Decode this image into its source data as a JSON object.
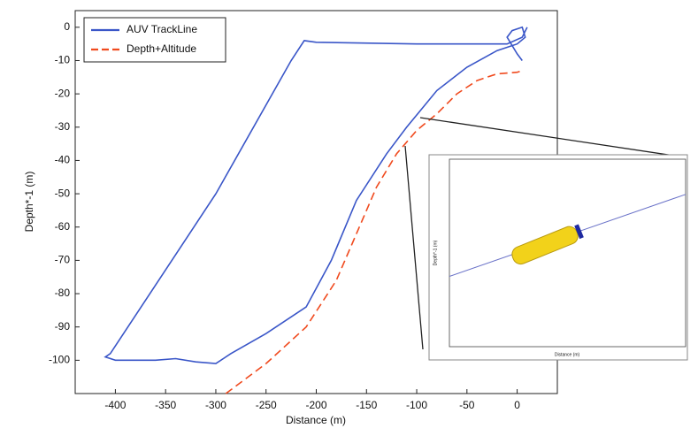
{
  "chart_data": [
    {
      "type": "line",
      "x_label": "Distance (m)",
      "y_label": "Depth*-1 (m)",
      "xlim": [
        -440,
        40
      ],
      "ylim": [
        -110,
        5
      ],
      "xticks": [
        -400,
        -350,
        -300,
        -250,
        -200,
        -150,
        -100,
        -50,
        0
      ],
      "yticks": [
        0,
        -10,
        -20,
        -30,
        -40,
        -50,
        -60,
        -70,
        -80,
        -90,
        -100
      ],
      "legend": "upper left",
      "series": [
        {
          "name": "AUV TrackLine",
          "color": "#3a56c8",
          "dash": false,
          "x": [
            10,
            5,
            -10,
            -100,
            -200,
            -212,
            -225,
            -300,
            -405,
            -410,
            -400,
            -360,
            -340,
            -320,
            -300,
            -285,
            -250,
            -210,
            -185,
            -160,
            -130,
            -110,
            -80,
            -50,
            -20,
            0,
            8,
            5,
            -5,
            -10,
            0,
            5
          ],
          "values": [
            0,
            -3,
            -5,
            -5,
            -4.5,
            -4,
            -10,
            -50,
            -98,
            -99,
            -100,
            -100,
            -99.5,
            -100.5,
            -101,
            -98,
            -92,
            -84,
            -70,
            -52,
            -38,
            -30,
            -19,
            -12,
            -7,
            -5,
            -3,
            0,
            -1,
            -3,
            -8,
            -10
          ]
        },
        {
          "name": "Depth+Altitude",
          "color": "#f04a1e",
          "dash": true,
          "x": [
            -290,
            -250,
            -210,
            -180,
            -160,
            -140,
            -120,
            -100,
            -80,
            -60,
            -40,
            -20,
            0,
            5
          ],
          "values": [
            -110,
            -101,
            -90,
            -76,
            -62,
            -48,
            -38,
            -31,
            -26,
            -20,
            -16,
            -14,
            -13.5,
            -13
          ]
        }
      ]
    },
    {
      "type": "line",
      "x_label": "Distance (m)",
      "y_label": "Depth*-1 (m)",
      "xlim": [
        -112,
        -98
      ],
      "ylim": [
        -40,
        -24
      ],
      "series": [
        {
          "color": "#6a72c8",
          "x": [
            -112,
            -98
          ],
          "values": [
            -34,
            -27
          ]
        }
      ]
    }
  ]
}
